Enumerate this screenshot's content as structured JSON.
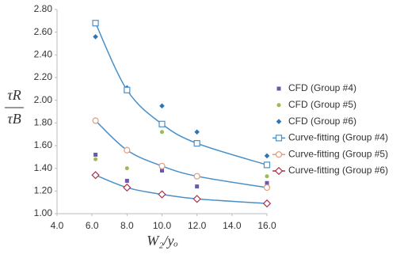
{
  "chart_data": {
    "type": "scatter",
    "x_label": "W₂/yₒ",
    "y_label": {
      "numerator": "τR",
      "denominator": "τB"
    },
    "x": [
      6.2,
      8,
      10,
      12,
      16
    ],
    "xlim": [
      4,
      16
    ],
    "ylim": [
      1,
      2.8
    ],
    "xticks": [
      {
        "value": 4,
        "label": "4.0"
      },
      {
        "value": 6,
        "label": "6.0"
      },
      {
        "value": 8,
        "label": "8.0"
      },
      {
        "value": 10,
        "label": "10.0"
      },
      {
        "value": 12,
        "label": "12.0"
      },
      {
        "value": 14,
        "label": "14.0"
      },
      {
        "value": 16,
        "label": "16.0"
      }
    ],
    "yticks": [
      {
        "value": 1,
        "label": "1.00"
      },
      {
        "value": 1.2,
        "label": "1.20"
      },
      {
        "value": 1.4,
        "label": "1.40"
      },
      {
        "value": 1.6,
        "label": "1.60"
      },
      {
        "value": 1.8,
        "label": "1.80"
      },
      {
        "value": 2,
        "label": "2.00"
      },
      {
        "value": 2.2,
        "label": "2.20"
      },
      {
        "value": 2.4,
        "label": "2.40"
      },
      {
        "value": 2.6,
        "label": "2.60"
      },
      {
        "value": 2.8,
        "label": "2.80"
      }
    ],
    "grid": false,
    "legend": "right",
    "series": [
      {
        "name": "CFD (Group #4)",
        "color": "#6a5aa8",
        "marker": "square",
        "line": false,
        "values": [
          1.52,
          1.29,
          1.38,
          1.24,
          1.27
        ]
      },
      {
        "name": "CFD (Group #5)",
        "color": "#9bbb59",
        "marker": "circle",
        "line": false,
        "values": [
          1.48,
          1.4,
          1.72,
          1.61,
          1.33
        ]
      },
      {
        "name": "CFD (Group #6)",
        "color": "#2e75b6",
        "marker": "diamond",
        "line": false,
        "values": [
          2.56,
          2.11,
          1.95,
          1.72,
          1.51
        ]
      },
      {
        "name": "Curve-fitting (Group #4)",
        "color": "#4a90c8",
        "marker": "open-square",
        "line": true,
        "values": [
          2.68,
          2.09,
          1.79,
          1.62,
          1.43
        ]
      },
      {
        "name": "Curve-fitting (Group #5)",
        "color": "#e39a7a",
        "marker": "open-circle",
        "line": true,
        "values": [
          1.82,
          1.56,
          1.42,
          1.33,
          1.23
        ]
      },
      {
        "name": "Curve-fitting (Group #6)",
        "color": "#b0304a",
        "marker": "open-diamond",
        "line": true,
        "values": [
          1.34,
          1.23,
          1.17,
          1.13,
          1.09
        ]
      }
    ]
  }
}
